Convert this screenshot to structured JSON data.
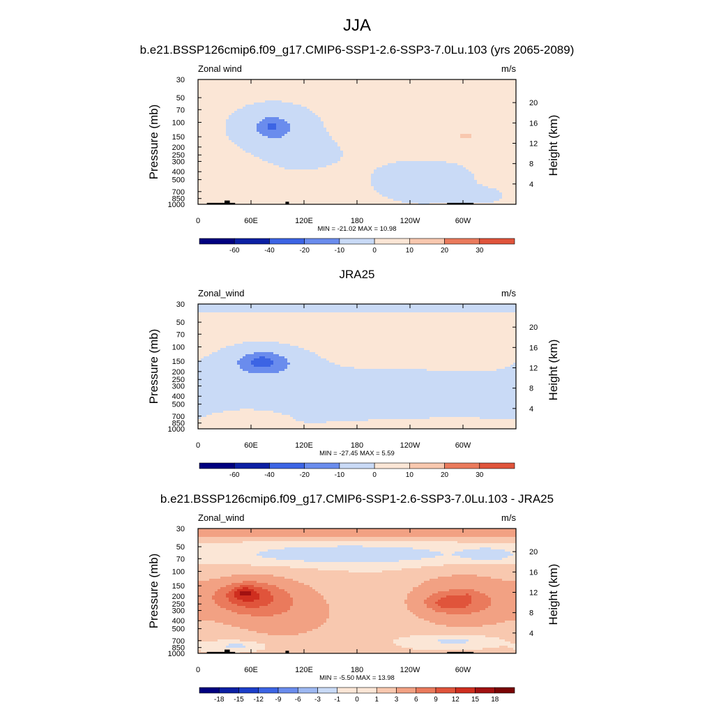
{
  "figure": {
    "title": "JJA"
  },
  "colors": {
    "scale": [
      "#00007f",
      "#0b1fa3",
      "#1c3ec9",
      "#3c64e4",
      "#6a8ced",
      "#9db8f2",
      "#c9daf6",
      "#fbe6d6",
      "#f8c8af",
      "#f2a183",
      "#ea7a5c",
      "#e0543b",
      "#cf2e1f",
      "#a11111",
      "#7a0404"
    ],
    "land": "#000000",
    "frame": "#000000"
  },
  "chart_data": [
    {
      "type": "heatmap",
      "title": "b.e21.BSSP126cmip6.f09_g17.CMIP6-SSP1-2.6-SSP3-7.0Lu.103 (yrs 2065-2089)",
      "left_label": "Zonal wind",
      "units": "m/s",
      "ylabel": "Pressure (mb)",
      "ylabel_right": "Height (km)",
      "x_ticks": [
        "0",
        "60E",
        "120E",
        "180",
        "120W",
        "60W"
      ],
      "y_ticks": [
        "30",
        "50",
        "70",
        "100",
        "150",
        "200",
        "250",
        "300",
        "400",
        "500",
        "700",
        "850",
        "1000"
      ],
      "y_ticks_right": [
        "20",
        "16",
        "12",
        "8",
        "4"
      ],
      "y_scale": "log",
      "y_range": [
        1000,
        30
      ],
      "x_range": [
        0,
        360
      ],
      "stats": "MIN = -21.02  MAX =  10.98",
      "min": -21.02,
      "max": 10.98,
      "colorbar_labels": [
        "-60",
        "-40",
        "-20",
        "-10",
        "0",
        "10",
        "20",
        "30"
      ],
      "colorbar_levels": [
        -60,
        -40,
        -20,
        -10,
        0,
        10,
        20,
        30
      ],
      "fill_value": 1,
      "features": [
        {
          "lon": 85,
          "p": 115,
          "rlon": 38,
          "rp": 0.5,
          "v": -8
        },
        {
          "lon": 85,
          "p": 115,
          "rlon": 24,
          "rp": 0.35,
          "v": -8
        },
        {
          "lon": 84,
          "p": 110,
          "rlon": 9,
          "rp": 0.18,
          "v": -8
        },
        {
          "lon": 92,
          "p": 230,
          "rlon": 70,
          "rp": 0.55,
          "v": -3
        },
        {
          "lon": 250,
          "p": 130,
          "rlon": 55,
          "rp": 0.5,
          "v": 4
        },
        {
          "lon": 300,
          "p": 130,
          "rlon": 38,
          "rp": 0.38,
          "v": 4
        },
        {
          "lon": 305,
          "p": 148,
          "rlon": 12,
          "rp": 0.12,
          "v": 6
        },
        {
          "lon": 45,
          "p": 400,
          "rlon": 40,
          "rp": 0.9,
          "v": 3
        },
        {
          "lon": 70,
          "p": 720,
          "rlon": 32,
          "rp": 0.12,
          "v": 4
        },
        {
          "lon": 255,
          "p": 520,
          "rlon": 50,
          "rp": 0.55,
          "v": -4
        },
        {
          "lon": 320,
          "p": 780,
          "rlon": 25,
          "rp": 0.2,
          "v": -3
        }
      ],
      "land": [
        {
          "lon": [
            10,
            42
          ],
          "p": 960
        },
        {
          "lon": [
            30,
            36
          ],
          "p": 900
        },
        {
          "lon": [
            99,
            103
          ],
          "p": 930
        },
        {
          "lon": [
            282,
            312
          ],
          "p": 960
        }
      ]
    },
    {
      "type": "heatmap",
      "title": "JRA25",
      "left_label": "Zonal_wind",
      "units": "m/s",
      "ylabel": "Pressure (mb)",
      "ylabel_right": "Height (km)",
      "x_ticks": [
        "0",
        "60E",
        "120E",
        "180",
        "120W",
        "60W"
      ],
      "y_ticks": [
        "30",
        "50",
        "70",
        "100",
        "150",
        "200",
        "250",
        "300",
        "400",
        "500",
        "700",
        "850",
        "1000"
      ],
      "y_ticks_right": [
        "20",
        "16",
        "12",
        "8",
        "4"
      ],
      "y_scale": "log",
      "y_range": [
        1000,
        30
      ],
      "x_range": [
        0,
        360
      ],
      "stats": "MIN = -27.45  MAX =   5.59",
      "min": -27.45,
      "max": 5.59,
      "colorbar_labels": [
        "-60",
        "-40",
        "-20",
        "-10",
        "0",
        "10",
        "20",
        "30"
      ],
      "colorbar_levels": [
        -60,
        -40,
        -20,
        -10,
        0,
        10,
        20,
        30
      ],
      "fill_value": 1,
      "features": [
        {
          "lon": 180,
          "p": 30,
          "rlon": 400,
          "rp": 0.25,
          "v": -3
        },
        {
          "lon": 75,
          "p": 160,
          "rlon": 48,
          "rp": 0.45,
          "v": -8
        },
        {
          "lon": 75,
          "p": 155,
          "rlon": 35,
          "rp": 0.35,
          "v": -8
        },
        {
          "lon": 72,
          "p": 150,
          "rlon": 18,
          "rp": 0.2,
          "v": -10
        },
        {
          "lon": 60,
          "p": 400,
          "rlon": 90,
          "rp": 0.8,
          "v": -3
        },
        {
          "lon": 220,
          "p": 360,
          "rlon": 120,
          "rp": 0.7,
          "v": -3
        },
        {
          "lon": 240,
          "p": 80,
          "rlon": 140,
          "rp": 0.55,
          "v": 3
        },
        {
          "lon": 300,
          "p": 150,
          "rlon": 25,
          "rp": 0.12,
          "v": 3
        },
        {
          "lon": 60,
          "p": 700,
          "rlon": 40,
          "rp": 0.25,
          "v": 3
        }
      ],
      "land": []
    },
    {
      "type": "heatmap",
      "title": "b.e21.BSSP126cmip6.f09_g17.CMIP6-SSP1-2.6-SSP3-7.0Lu.103 - JRA25",
      "left_label": "Zonal_wind",
      "units": "m/s",
      "ylabel": "Pressure (mb)",
      "ylabel_right": "Height (km)",
      "x_ticks": [
        "0",
        "60E",
        "120E",
        "180",
        "120W",
        "60W"
      ],
      "y_ticks": [
        "30",
        "50",
        "70",
        "100",
        "150",
        "200",
        "250",
        "300",
        "400",
        "500",
        "700",
        "850",
        "1000"
      ],
      "y_ticks_right": [
        "20",
        "16",
        "12",
        "8",
        "4"
      ],
      "y_scale": "log",
      "y_range": [
        1000,
        30
      ],
      "x_range": [
        0,
        360
      ],
      "stats": "MIN =  -5.50  MAX =  13.98",
      "min": -5.5,
      "max": 13.98,
      "colorbar_labels": [
        "-18",
        "-15",
        "-12",
        "-9",
        "-6",
        "-3",
        "-1",
        "0",
        "1",
        "3",
        "6",
        "9",
        "12",
        "15",
        "18"
      ],
      "colorbar_levels": [
        -18,
        -15,
        -12,
        -9,
        -6,
        -3,
        -1,
        0,
        1,
        3,
        6,
        9,
        12,
        15,
        18
      ],
      "fill_value": 1,
      "features": [
        {
          "lon": 180,
          "p": 32,
          "rlon": 400,
          "rp": 0.2,
          "v": 5
        },
        {
          "lon": 170,
          "p": 62,
          "rlon": 130,
          "rp": 0.28,
          "v": -4
        },
        {
          "lon": 330,
          "p": 62,
          "rlon": 30,
          "rp": 0.2,
          "v": -3
        },
        {
          "lon": 60,
          "p": 210,
          "rlon": 50,
          "rp": 0.55,
          "v": 6
        },
        {
          "lon": 55,
          "p": 190,
          "rlon": 25,
          "rp": 0.3,
          "v": 5
        },
        {
          "lon": 52,
          "p": 180,
          "rlon": 9,
          "rp": 0.13,
          "v": 4
        },
        {
          "lon": 100,
          "p": 330,
          "rlon": 70,
          "rp": 0.9,
          "v": 3
        },
        {
          "lon": 300,
          "p": 230,
          "rlon": 60,
          "rp": 0.7,
          "v": 6
        },
        {
          "lon": 285,
          "p": 240,
          "rlon": 25,
          "rp": 0.22,
          "v": 5
        },
        {
          "lon": 305,
          "p": 200,
          "rlon": 5,
          "rp": 0.1,
          "v": 2
        },
        {
          "lon": 45,
          "p": 810,
          "rlon": 30,
          "rp": 0.14,
          "v": -3
        },
        {
          "lon": 290,
          "p": 700,
          "rlon": 40,
          "rp": 0.15,
          "v": -3
        }
      ],
      "land": [
        {
          "lon": [
            10,
            42
          ],
          "p": 960
        },
        {
          "lon": [
            30,
            36
          ],
          "p": 900
        },
        {
          "lon": [
            99,
            103
          ],
          "p": 930
        },
        {
          "lon": [
            282,
            312
          ],
          "p": 960
        }
      ]
    }
  ]
}
